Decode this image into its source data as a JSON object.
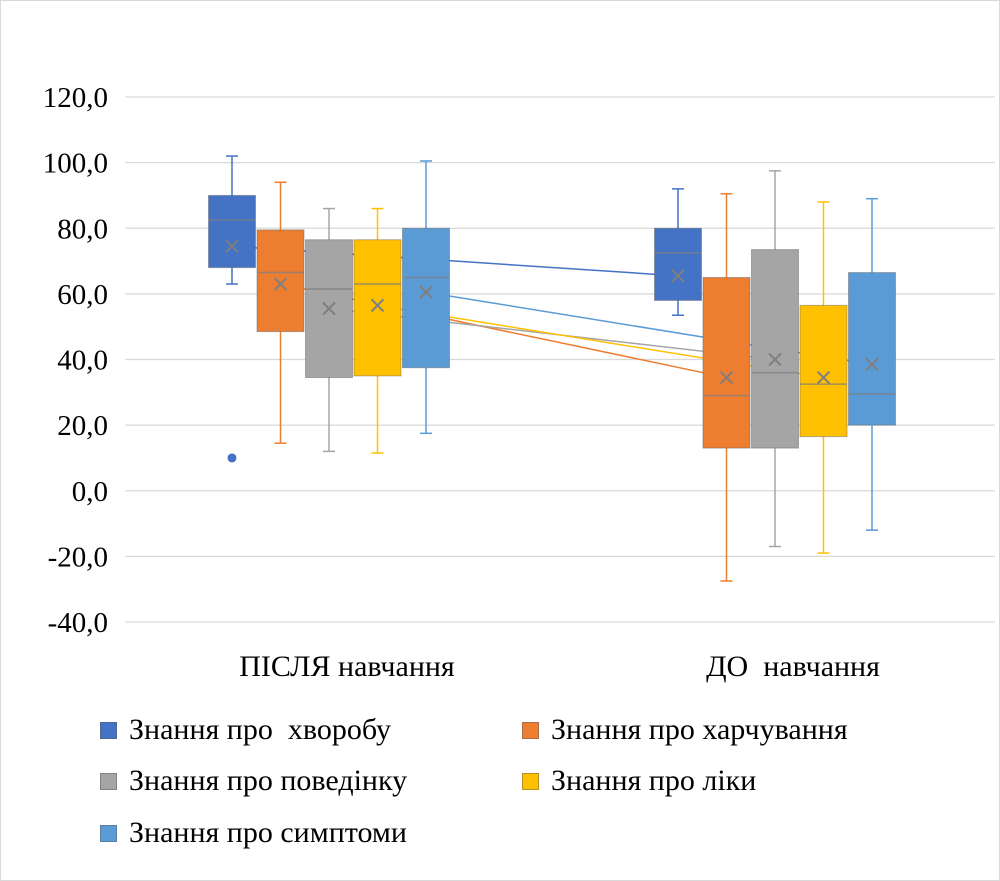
{
  "chart_data": {
    "type": "box",
    "categories": [
      "ПІСЛЯ навчання",
      "ДО  навчання"
    ],
    "ylim": [
      -40,
      120
    ],
    "yticks": [
      "-40,0",
      "-20,0",
      "0,0",
      "20,0",
      "40,0",
      "60,0",
      "80,0",
      "100,0",
      "120,0"
    ],
    "ytick_values": [
      -40,
      -20,
      0,
      20,
      40,
      60,
      80,
      100,
      120
    ],
    "grid": true,
    "legend_position": "bottom",
    "series": [
      {
        "name": "Знання про  хворобу",
        "color": "#4472C4",
        "boxes": [
          {
            "min": 63,
            "q1": 68,
            "median": 82.5,
            "q3": 90,
            "max": 102,
            "mean": 74.5,
            "outliers": [
              10
            ]
          },
          {
            "min": 53.5,
            "q1": 58,
            "median": 72.5,
            "q3": 80,
            "max": 92,
            "mean": 65.5,
            "outliers": []
          }
        ]
      },
      {
        "name": "Знання про харчування",
        "color": "#ED7D31",
        "boxes": [
          {
            "min": 14.5,
            "q1": 48.5,
            "median": 66.5,
            "q3": 79.5,
            "max": 94,
            "mean": 63,
            "outliers": []
          },
          {
            "min": -27.5,
            "q1": 13,
            "median": 29,
            "q3": 65,
            "max": 90.5,
            "mean": 34.5,
            "outliers": []
          }
        ]
      },
      {
        "name": "Знання про поведінку",
        "color": "#A5A5A5",
        "boxes": [
          {
            "min": 12,
            "q1": 34.5,
            "median": 61.5,
            "q3": 76.5,
            "max": 86,
            "mean": 55.5,
            "outliers": []
          },
          {
            "min": -17,
            "q1": 13,
            "median": 36,
            "q3": 73.5,
            "max": 97.5,
            "mean": 40,
            "outliers": []
          }
        ]
      },
      {
        "name": "Знання про ліки",
        "color": "#FFC000",
        "boxes": [
          {
            "min": 11.5,
            "q1": 35,
            "median": 63,
            "q3": 76.5,
            "max": 86,
            "mean": 56.5,
            "outliers": []
          },
          {
            "min": -19,
            "q1": 16.5,
            "median": 32.5,
            "q3": 56.5,
            "max": 88,
            "mean": 34.5,
            "outliers": []
          }
        ]
      },
      {
        "name": "Знання про симптоми",
        "color": "#5B9BD5",
        "boxes": [
          {
            "min": 17.5,
            "q1": 37.5,
            "median": 65,
            "q3": 80,
            "max": 100.5,
            "mean": 60.5,
            "outliers": []
          },
          {
            "min": -12,
            "q1": 20,
            "median": 29.5,
            "q3": 66.5,
            "max": 89,
            "mean": 38.5,
            "outliers": []
          }
        ]
      }
    ]
  }
}
